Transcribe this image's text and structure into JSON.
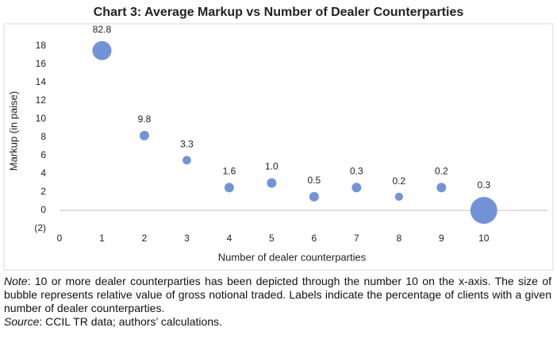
{
  "chart_data": {
    "type": "bubble",
    "title": "Chart 3: Average Markup vs Number of Dealer Counterparties",
    "x_label": "Number of dealer counterparties",
    "y_label": "Markup (in paise)",
    "series": [
      {
        "x": [
          1,
          2,
          3,
          4,
          5,
          6,
          7,
          8,
          9,
          10
        ],
        "values": [
          17.5,
          8.2,
          5.5,
          2.5,
          3.0,
          1.5,
          2.5,
          1.5,
          2.5,
          0
        ],
        "sizes": [
          100,
          25,
          20,
          25,
          25,
          25,
          25,
          18,
          25,
          200
        ],
        "labels": [
          "82.8",
          "9.8",
          "3.3",
          "1.6",
          "1.0",
          "0.5",
          "0.3",
          "0.2",
          "0.2",
          "0.3"
        ],
        "color": "#7294d6"
      }
    ],
    "xlim": [
      0,
      11.5
    ],
    "xticks": [
      0,
      1,
      2,
      3,
      4,
      5,
      6,
      7,
      8,
      9,
      10
    ],
    "ylim": [
      -2,
      20
    ],
    "yticks": [
      {
        "value": -2,
        "label": "(2)"
      },
      0,
      2,
      4,
      6,
      8,
      10,
      12,
      14,
      16,
      18
    ]
  },
  "notes": [
    {
      "label": "Note",
      "text": ": 10 or more dealer counterparties has been depicted through the number 10 on the x-axis. The size of bubble represents relative value of gross notional traded. Labels indicate the percentage of clients with a given number of dealer counterparties."
    },
    {
      "label": "Source",
      "text": ": CCIL TR data; authors’ calculations."
    }
  ]
}
